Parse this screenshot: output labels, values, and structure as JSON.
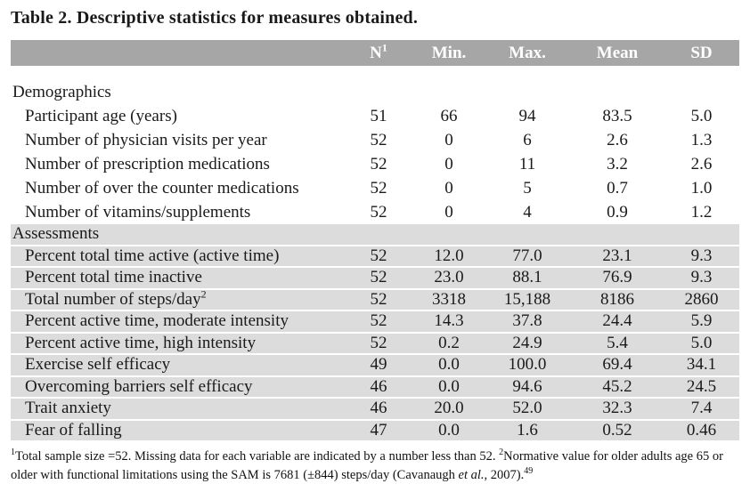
{
  "title": "Table 2. Descriptive statistics for measures obtained.",
  "colors": {
    "header_bg": "#a6a6a6",
    "header_text": "#ffffff",
    "stripe_bg": "#dcdcdc",
    "body_text": "#1a1a1a",
    "page_bg": "#ffffff"
  },
  "columns": [
    {
      "text": "N",
      "sup": "1"
    },
    {
      "text": "Min."
    },
    {
      "text": "Max."
    },
    {
      "text": "Mean"
    },
    {
      "text": "SD"
    }
  ],
  "sections": [
    {
      "name": "Demographics",
      "striped": false,
      "rows": [
        {
          "label": "Participant age (years)",
          "values": [
            "51",
            "66",
            "94",
            "83.5",
            "5.0"
          ]
        },
        {
          "label": "Number of physician visits per year",
          "values": [
            "52",
            "0",
            "6",
            "2.6",
            "1.3"
          ]
        },
        {
          "label": "Number of prescription medications",
          "values": [
            "52",
            "0",
            "11",
            "3.2",
            "2.6"
          ]
        },
        {
          "label": "Number of over the counter medications",
          "values": [
            "52",
            "0",
            "5",
            "0.7",
            "1.0"
          ]
        },
        {
          "label": "Number of vitamins/supplements",
          "values": [
            "52",
            "0",
            "4",
            "0.9",
            "1.2"
          ]
        }
      ]
    },
    {
      "name": "Assessments",
      "striped": true,
      "rows": [
        {
          "label": "Percent total time active (active time)",
          "values": [
            "52",
            "12.0",
            "77.0",
            "23.1",
            "9.3"
          ]
        },
        {
          "label": "Percent total time inactive",
          "values": [
            "52",
            "23.0",
            "88.1",
            "76.9",
            "9.3"
          ]
        },
        {
          "label": "Total number of steps/day",
          "label_sup": "2",
          "values": [
            "52",
            "3318",
            "15,188",
            "8186",
            "2860"
          ]
        },
        {
          "label": "Percent active time, moderate intensity",
          "values": [
            "52",
            "14.3",
            "37.8",
            "24.4",
            "5.9"
          ]
        },
        {
          "label": "Percent active time, high intensity",
          "values": [
            "52",
            "0.2",
            "24.9",
            "5.4",
            "5.0"
          ]
        },
        {
          "label": "Exercise self efficacy",
          "values": [
            "49",
            "0.0",
            "100.0",
            "69.4",
            "34.1"
          ]
        },
        {
          "label": "Overcoming barriers self efficacy",
          "values": [
            "46",
            "0.0",
            "94.6",
            "45.2",
            "24.5"
          ]
        },
        {
          "label": "Trait anxiety",
          "values": [
            "46",
            "20.0",
            "52.0",
            "32.3",
            "7.4"
          ]
        },
        {
          "label": "Fear of falling",
          "values": [
            "47",
            "0.0",
            "1.6",
            "0.52",
            "0.46"
          ]
        }
      ]
    }
  ],
  "footnote": {
    "segments": [
      {
        "sup": "1"
      },
      {
        "text": "Total sample size =52.  Missing data for each variable are indicated by a number less than 52. "
      },
      {
        "sup": "2"
      },
      {
        "text": "Normative value for older adults age 65 or older with functional limitations using the SAM is 7681 (±844) steps/day (Cavanaugh "
      },
      {
        "text": "et al.",
        "italic": true
      },
      {
        "text": ", 2007)."
      },
      {
        "sup": "49"
      }
    ]
  }
}
